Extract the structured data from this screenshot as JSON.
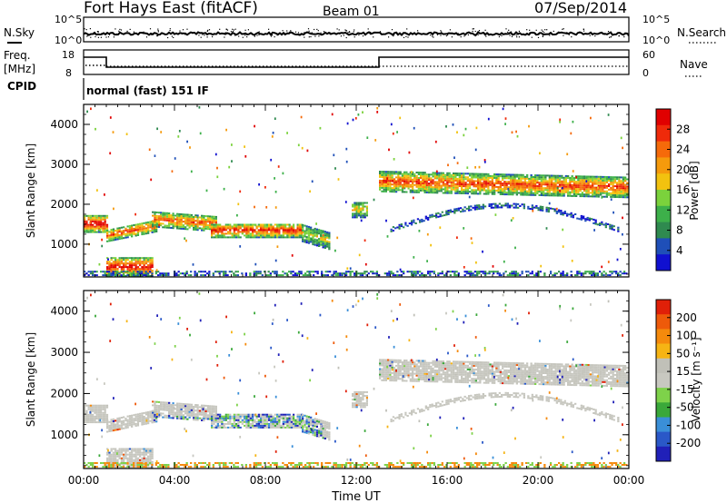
{
  "header": {
    "title": "Fort Hays East (fitACF)",
    "beam": "Beam 01",
    "date": "07/Sep/2014"
  },
  "params": {
    "nsky_label": "N.Sky",
    "nsky_ticks": [
      "10^5",
      "10^0"
    ],
    "nsearch_label": "N.Search",
    "nsearch_ticks": [
      "10^5",
      "10^0"
    ],
    "freq_label": "Freq.",
    "freq_unit": "[MHz]",
    "freq_ticks": [
      "18",
      "8"
    ],
    "nave_label": "Nave",
    "nave_ticks": [
      "60",
      "0"
    ],
    "cpid_label": "CPID",
    "cpid_value": "normal (fast) 151 IF"
  },
  "colors": {
    "power": [
      "#1010d0",
      "#1f4fb8",
      "#2f8a4f",
      "#3db04a",
      "#7bd23c",
      "#f2c20f",
      "#f59a0c",
      "#f56a0a",
      "#ef2a0a",
      "#e00000"
    ],
    "velocity": [
      "#2020b8",
      "#2a58c8",
      "#3a8fd8",
      "#3aa83a",
      "#7ed24a",
      "#c8c8c0",
      "#c0c0b8",
      "#f6b414",
      "#f58a0c",
      "#ee5a0a",
      "#e02008"
    ],
    "gray_scatter": "#c6c6be"
  },
  "chart_data": [
    {
      "type": "heatmap",
      "name": "power",
      "ylabel": "Slant Range [km]",
      "xlabel": "",
      "x_ticks": [
        "00:00",
        "04:00",
        "08:00",
        "12:00",
        "16:00",
        "20:00",
        "00:00"
      ],
      "xlim": [
        0,
        24
      ],
      "ylim": [
        180,
        4500
      ],
      "y_ticks": [
        "1000",
        "2000",
        "3000",
        "4000"
      ],
      "colorbar": {
        "label": "Power [dB]",
        "ticks": [
          "4",
          "8",
          "12",
          "16",
          "20",
          "24",
          "28"
        ],
        "range": [
          0,
          32
        ]
      }
    },
    {
      "type": "heatmap",
      "name": "velocity",
      "ylabel": "Slant Range [km]",
      "xlabel": "Time UT",
      "x_ticks": [
        "00:00",
        "04:00",
        "08:00",
        "12:00",
        "16:00",
        "20:00",
        "00:00"
      ],
      "xlim": [
        0,
        24
      ],
      "ylim": [
        180,
        4500
      ],
      "y_ticks": [
        "1000",
        "2000",
        "3000",
        "4000"
      ],
      "colorbar": {
        "label": "Velocity [m s⁻¹]",
        "ticks": [
          "200",
          "100",
          "50",
          "15",
          "-15",
          "-50",
          "-100",
          "-200"
        ]
      }
    }
  ]
}
